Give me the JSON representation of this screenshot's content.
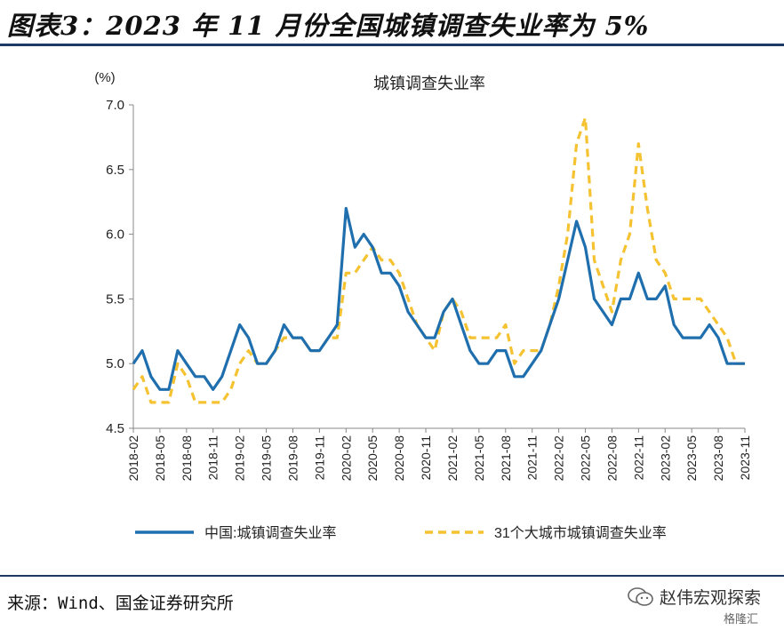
{
  "figure": {
    "title": "图表3：2023 年 11 月份全国城镇调查失业率为 5%",
    "source": "来源：Wind、国金证券研究所",
    "watermark": "赵伟宏观探索",
    "watermark_sub": "格隆汇"
  },
  "colors": {
    "china": "#1f6fae",
    "big31": "#f5c231",
    "rule": "#1f3864"
  },
  "chart_data": {
    "type": "line",
    "title": "城镇调查失业率",
    "ylabel": "(%)",
    "xlabel": "",
    "ylim": [
      4.5,
      7.0
    ],
    "yticks": [
      "4.5",
      "5.0",
      "5.5",
      "6.0",
      "6.5",
      "7.0"
    ],
    "grid": false,
    "legend_position": "bottom",
    "x": [
      "2018-02",
      "2018-03",
      "2018-04",
      "2018-05",
      "2018-06",
      "2018-07",
      "2018-08",
      "2018-09",
      "2018-10",
      "2018-11",
      "2018-12",
      "2019-01",
      "2019-02",
      "2019-03",
      "2019-04",
      "2019-05",
      "2019-06",
      "2019-07",
      "2019-08",
      "2019-09",
      "2019-10",
      "2019-11",
      "2019-12",
      "2020-01",
      "2020-02",
      "2020-03",
      "2020-04",
      "2020-05",
      "2020-06",
      "2020-07",
      "2020-08",
      "2020-09",
      "2020-10",
      "2020-11",
      "2020-12",
      "2021-01",
      "2021-02",
      "2021-03",
      "2021-04",
      "2021-05",
      "2021-06",
      "2021-07",
      "2021-08",
      "2021-09",
      "2021-10",
      "2021-11",
      "2021-12",
      "2022-01",
      "2022-02",
      "2022-03",
      "2022-04",
      "2022-05",
      "2022-06",
      "2022-07",
      "2022-08",
      "2022-09",
      "2022-10",
      "2022-11",
      "2022-12",
      "2023-01",
      "2023-02",
      "2023-03",
      "2023-04",
      "2023-05",
      "2023-06",
      "2023-07",
      "2023-08",
      "2023-09",
      "2023-10",
      "2023-11"
    ],
    "xtick_labels": [
      "2018-02",
      "2018-05",
      "2018-08",
      "2018-11",
      "2019-02",
      "2019-05",
      "2019-08",
      "2019-11",
      "2020-02",
      "2020-05",
      "2020-08",
      "2020-11",
      "2021-02",
      "2021-05",
      "2021-08",
      "2021-11",
      "2022-02",
      "2022-05",
      "2022-08",
      "2022-11",
      "2023-02",
      "2023-05",
      "2023-08",
      "2023-11"
    ],
    "series": [
      {
        "name": "中国:城镇调查失业率",
        "color": "#1f6fae",
        "dash": "solid",
        "values": [
          5.0,
          5.1,
          4.9,
          4.8,
          4.8,
          5.1,
          5.0,
          4.9,
          4.9,
          4.8,
          4.9,
          5.1,
          5.3,
          5.2,
          5.0,
          5.0,
          5.1,
          5.3,
          5.2,
          5.2,
          5.1,
          5.1,
          5.2,
          5.3,
          6.2,
          5.9,
          6.0,
          5.9,
          5.7,
          5.7,
          5.6,
          5.4,
          5.3,
          5.2,
          5.2,
          5.4,
          5.5,
          5.3,
          5.1,
          5.0,
          5.0,
          5.1,
          5.1,
          4.9,
          4.9,
          5.0,
          5.1,
          5.3,
          5.5,
          5.8,
          6.1,
          5.9,
          5.5,
          5.4,
          5.3,
          5.5,
          5.5,
          5.7,
          5.5,
          5.5,
          5.6,
          5.3,
          5.2,
          5.2,
          5.2,
          5.3,
          5.2,
          5.0,
          5.0,
          5.0
        ]
      },
      {
        "name": "31个大城市城镇调查失业率",
        "color": "#f5c231",
        "dash": "dashed",
        "values": [
          4.8,
          4.9,
          4.7,
          4.7,
          4.7,
          5.0,
          4.9,
          4.7,
          4.7,
          4.7,
          4.7,
          4.8,
          5.0,
          5.1,
          5.0,
          5.0,
          5.1,
          5.2,
          5.2,
          5.2,
          5.1,
          5.1,
          5.2,
          5.2,
          5.7,
          5.7,
          5.8,
          5.9,
          5.8,
          5.8,
          5.7,
          5.5,
          5.3,
          5.2,
          5.1,
          5.4,
          5.5,
          5.4,
          5.2,
          5.2,
          5.2,
          5.2,
          5.3,
          5.0,
          5.1,
          5.1,
          5.1,
          5.3,
          5.6,
          6.0,
          6.7,
          6.9,
          5.8,
          5.6,
          5.4,
          5.8,
          6.0,
          6.7,
          6.2,
          5.8,
          5.7,
          5.5,
          5.5,
          5.5,
          5.5,
          5.4,
          5.3,
          5.2,
          5.0,
          5.0
        ]
      }
    ]
  }
}
